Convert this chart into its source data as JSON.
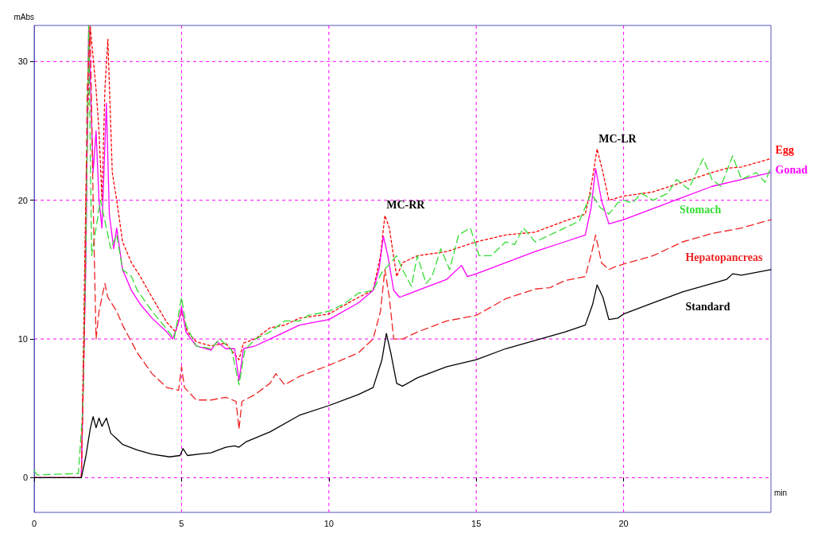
{
  "chart_data": {
    "type": "line",
    "xlabel": "min",
    "ylabel": "mAbs",
    "xlim": [
      0,
      25
    ],
    "ylim": [
      -2.5,
      32.6
    ],
    "xticks": [
      0,
      5,
      10,
      15,
      20
    ],
    "yticks": [
      0,
      10,
      20,
      30
    ],
    "grid": true,
    "legend": false,
    "marker": "none",
    "annotations": [
      {
        "text": "MC-RR",
        "x": 11.9,
        "y": 18.9
      },
      {
        "text": "MC-LR",
        "x": 19.1,
        "y": 23.7
      }
    ],
    "series": [
      {
        "name": "Egg",
        "color": "#ff0000",
        "line_style": "dotted",
        "x": [
          0,
          1.6,
          1.75,
          1.9,
          2.1,
          2.2,
          2.3,
          2.4,
          2.5,
          2.65,
          2.8,
          3,
          3.3,
          3.6,
          4,
          4.5,
          4.8,
          5,
          5.2,
          5.5,
          6,
          6.5,
          6.95,
          7.1,
          7.5,
          8,
          8.5,
          9,
          10,
          11,
          11.5,
          11.75,
          11.9,
          12.05,
          12.3,
          12.5,
          13,
          14,
          15,
          16,
          17,
          18,
          18.7,
          18.9,
          19.1,
          19.3,
          19.5,
          20,
          21,
          22,
          23,
          23.5,
          24,
          25
        ],
        "values": [
          0,
          0,
          20,
          32.6,
          28,
          25,
          20,
          28,
          31.6,
          22,
          20,
          17,
          15.5,
          14.5,
          13,
          11.2,
          10.5,
          12,
          10.5,
          9.8,
          9.5,
          9.7,
          8.5,
          9.7,
          10,
          10.8,
          11,
          11.5,
          11.8,
          13,
          13.5,
          16,
          18.9,
          18,
          14.5,
          15.5,
          16,
          16.3,
          17,
          17.5,
          17.7,
          18.5,
          19,
          21,
          23.7,
          22,
          20,
          20.3,
          20.6,
          21.3,
          22,
          22.3,
          22.4,
          23
        ]
      },
      {
        "name": "Gonad",
        "color": "#ff00ff",
        "line_style": "solid",
        "x": [
          0,
          1.6,
          1.75,
          1.85,
          2,
          2.1,
          2.2,
          2.3,
          2.45,
          2.55,
          2.7,
          2.8,
          3,
          3.3,
          3.6,
          4,
          4.5,
          4.7,
          4.9,
          5,
          5.15,
          5.5,
          6,
          6.2,
          6.5,
          6.8,
          6.95,
          7.1,
          7.5,
          8,
          9,
          10,
          11,
          11.5,
          11.7,
          11.85,
          12,
          12.2,
          12.4,
          13,
          14,
          14.5,
          14.7,
          15,
          16,
          17,
          18,
          18.7,
          18.9,
          19.05,
          19.25,
          19.5,
          20,
          21,
          22,
          23,
          24,
          25
        ],
        "values": [
          0,
          0,
          15,
          32.6,
          22,
          25,
          20,
          18,
          27,
          19,
          16.5,
          18,
          15,
          13.5,
          12.5,
          11.5,
          10.5,
          10,
          11.2,
          12.3,
          10.5,
          9.5,
          9.2,
          9.8,
          9.3,
          9.3,
          7,
          9.3,
          9.5,
          10,
          11,
          11.4,
          12.6,
          13.5,
          15,
          17.4,
          16,
          13.5,
          13,
          13.5,
          14.3,
          15.3,
          14.5,
          14.7,
          15.5,
          16.3,
          17,
          17.5,
          19.5,
          22.3,
          20,
          18.3,
          18.6,
          19.4,
          20.2,
          21,
          21.5,
          22
        ]
      },
      {
        "name": "Stomach",
        "color": "#33dd33",
        "line_style": "dashed",
        "x": [
          0,
          0.1,
          1.5,
          1.65,
          1.75,
          1.85,
          1.95,
          2.1,
          2.25,
          2.4,
          2.6,
          2.8,
          3,
          3.3,
          3.5,
          4,
          4.5,
          4.75,
          5,
          5.15,
          5.5,
          6,
          6.3,
          6.7,
          6.95,
          7.15,
          7.5,
          8,
          8.5,
          9,
          9.3,
          10,
          10.5,
          11,
          11.5,
          11.8,
          12.3,
          12.5,
          12.8,
          13,
          13.3,
          13.5,
          13.8,
          14.1,
          14.4,
          14.8,
          15.1,
          15.5,
          16,
          16.3,
          16.6,
          17,
          17.5,
          18,
          18.5,
          18.9,
          19.2,
          19.5,
          19.8,
          20,
          20.3,
          20.6,
          21,
          21.5,
          21.8,
          22.2,
          22.7,
          23,
          23.3,
          23.7,
          24,
          24.5,
          24.8,
          25
        ],
        "values": [
          0.5,
          0.2,
          0.3,
          5,
          16,
          32.6,
          16,
          18,
          20,
          18.5,
          16.5,
          17.5,
          15,
          14.5,
          13.5,
          12,
          10.7,
          10,
          13,
          11,
          9.5,
          9.3,
          10,
          9.2,
          6.7,
          9.2,
          10,
          10.5,
          11.3,
          11.3,
          11.7,
          12,
          12.5,
          13.3,
          13.5,
          14.8,
          16,
          15,
          13.8,
          16,
          14,
          14.5,
          16.5,
          15,
          17.5,
          18,
          16,
          16,
          17,
          16.8,
          18,
          17,
          17.5,
          18,
          18.5,
          20.5,
          19.5,
          19,
          19.8,
          20,
          19.8,
          20.5,
          20,
          20.5,
          21.5,
          20.8,
          23,
          21.5,
          21,
          23.2,
          21.5,
          22,
          21.3,
          22.4
        ]
      },
      {
        "name": "Hepatopancreas",
        "color": "#ee2222",
        "line_style": "dashed",
        "x": [
          0,
          1.6,
          1.7,
          1.8,
          1.9,
          2,
          2.1,
          2.2,
          2.4,
          2.5,
          2.8,
          3,
          3.5,
          4,
          4.5,
          4.9,
          5,
          5.1,
          5.5,
          6,
          6.5,
          6.85,
          6.95,
          7.05,
          7.5,
          8,
          8.2,
          8.5,
          9,
          10,
          11,
          11.5,
          11.75,
          11.9,
          12.05,
          12.2,
          12.5,
          13,
          14,
          15,
          16,
          17,
          17.5,
          18,
          18.7,
          18.95,
          19.05,
          19.25,
          19.5,
          19.7,
          20,
          21,
          22,
          23,
          24,
          25
        ],
        "values": [
          0,
          0,
          10,
          28,
          32.6,
          20,
          10,
          12,
          14,
          13,
          12,
          11,
          9,
          7.5,
          6.5,
          6.3,
          8,
          6.5,
          5.6,
          5.6,
          5.8,
          5.5,
          3.5,
          5.5,
          6,
          6.8,
          7.5,
          6.7,
          7.3,
          8.1,
          9,
          10,
          12,
          15,
          13,
          10,
          10,
          10.5,
          11.3,
          11.7,
          12.9,
          13.6,
          13.7,
          14.2,
          14.5,
          16.5,
          17.5,
          15.5,
          15,
          15.2,
          15.4,
          16,
          17,
          17.6,
          18,
          18.6
        ]
      },
      {
        "name": "Standard",
        "color": "#000000",
        "line_style": "solid",
        "x": [
          0,
          1.6,
          1.75,
          1.9,
          2,
          2.1,
          2.2,
          2.3,
          2.45,
          2.6,
          2.8,
          3,
          3.5,
          4,
          4.6,
          4.95,
          5.05,
          5.2,
          6,
          6.5,
          6.8,
          6.95,
          7.2,
          8,
          9,
          10,
          11,
          11.5,
          11.8,
          11.95,
          12.1,
          12.3,
          12.5,
          13,
          14,
          15,
          16,
          17,
          18,
          18.7,
          18.95,
          19.1,
          19.3,
          19.5,
          19.8,
          20,
          21,
          22,
          23,
          23.5,
          23.7,
          24,
          25
        ],
        "values": [
          0,
          0,
          1.5,
          3.5,
          4.4,
          3.6,
          4.3,
          3.7,
          4.3,
          3.2,
          2.8,
          2.4,
          2,
          1.7,
          1.5,
          1.6,
          2.1,
          1.6,
          1.8,
          2.2,
          2.3,
          2.2,
          2.6,
          3.3,
          4.5,
          5.2,
          6,
          6.5,
          8.5,
          10.4,
          9,
          6.8,
          6.6,
          7.2,
          8,
          8.5,
          9.3,
          9.9,
          10.5,
          11,
          12.5,
          13.9,
          13,
          11.4,
          11.5,
          11.8,
          12.6,
          13.4,
          14,
          14.3,
          14.7,
          14.6,
          15
        ]
      }
    ]
  }
}
